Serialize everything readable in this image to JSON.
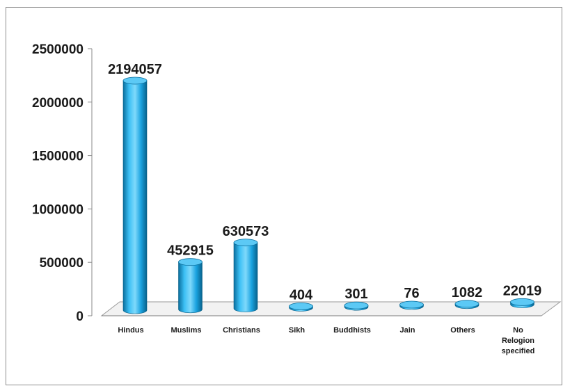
{
  "chart_data": {
    "type": "bar",
    "title": "",
    "xlabel": "",
    "ylabel": "",
    "categories": [
      "Hindus",
      "Muslims",
      "Christians",
      "Sikh",
      "Buddhists",
      "Jain",
      "Others",
      "No Relogion specified"
    ],
    "values": [
      2194057,
      452915,
      630573,
      404,
      301,
      76,
      1082,
      22019
    ],
    "data_labels": [
      "2194057",
      "452915",
      "630573",
      "404",
      "301",
      "76",
      "1082",
      "22019"
    ],
    "yticks": [
      0,
      500000,
      1000000,
      1500000,
      2000000,
      2500000
    ],
    "ytick_labels": [
      "0",
      "500000",
      "1000000",
      "1500000",
      "2000000",
      "2500000"
    ],
    "ylim": [
      0,
      2500000
    ],
    "bar_style": "3d-cylinder",
    "bar_color": "#1aa3e0",
    "legend": "none",
    "grid": false
  }
}
